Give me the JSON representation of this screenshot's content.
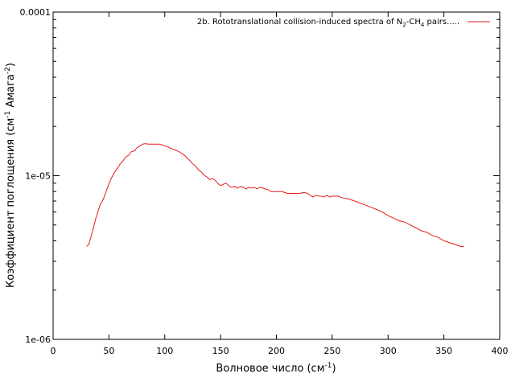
{
  "chart_data": {
    "type": "line",
    "xlabel_main": "Волновое число (см",
    "xlabel_sup": "-1",
    "xlabel_end": ")",
    "ylabel_main": "Коэффициент поглощения (см",
    "ylabel_sup1": "-1",
    "ylabel_mid": " Амага",
    "ylabel_sup2": "-2",
    "ylabel_end": ")",
    "legend": {
      "position": "top-right",
      "p1": "2b. Rototranslational collision-induced spectra of N",
      "sub1": "2",
      "p2": "-CH",
      "sub2": "4",
      "p3": " pairs.....",
      "color": "#e41a1c"
    },
    "xlim": [
      0,
      400
    ],
    "ylim": [
      1e-06,
      0.0001
    ],
    "yscale": "log",
    "xticks": [
      0,
      50,
      100,
      150,
      200,
      250,
      300,
      350,
      400
    ],
    "xtick_labels": [
      "0",
      "50",
      "100",
      "150",
      "200",
      "250",
      "300",
      "350",
      "400"
    ],
    "yticks": [
      1e-06,
      1e-05,
      0.0001
    ],
    "ytick_labels": [
      "1e-06",
      "1e-05",
      "0.0001"
    ],
    "grid": false,
    "series": [
      {
        "color": "#e41a1c",
        "x": [
          30,
          32,
          35,
          38,
          40,
          42,
          45,
          48,
          50,
          52,
          55,
          58,
          60,
          63,
          65,
          68,
          70,
          73,
          75,
          78,
          80,
          83,
          85,
          88,
          90,
          93,
          95,
          98,
          100,
          103,
          105,
          108,
          110,
          113,
          115,
          118,
          120,
          123,
          125,
          128,
          130,
          133,
          135,
          138,
          140,
          143,
          145,
          148,
          150,
          153,
          155,
          158,
          160,
          163,
          165,
          168,
          170,
          173,
          175,
          178,
          180,
          183,
          185,
          188,
          190,
          193,
          195,
          198,
          200,
          205,
          210,
          215,
          220,
          225,
          228,
          230,
          233,
          235,
          238,
          240,
          243,
          245,
          248,
          250,
          255,
          260,
          265,
          270,
          275,
          280,
          285,
          290,
          295,
          300,
          305,
          310,
          315,
          320,
          325,
          330,
          335,
          340,
          345,
          350,
          355,
          360,
          365,
          368
        ],
        "y": [
          3.7e-06,
          3.8e-06,
          4.5e-06,
          5.4e-06,
          6e-06,
          6.6e-06,
          7.2e-06,
          8.2e-06,
          8.9e-06,
          9.6e-06,
          1.05e-05,
          1.12e-05,
          1.18e-05,
          1.24e-05,
          1.3e-05,
          1.34e-05,
          1.4e-05,
          1.42e-05,
          1.48e-05,
          1.52e-05,
          1.56e-05,
          1.57e-05,
          1.56e-05,
          1.56e-05,
          1.56e-05,
          1.56e-05,
          1.56e-05,
          1.54e-05,
          1.52e-05,
          1.5e-05,
          1.47e-05,
          1.45e-05,
          1.43e-05,
          1.4e-05,
          1.37e-05,
          1.33e-05,
          1.28e-05,
          1.23e-05,
          1.18e-05,
          1.14e-05,
          1.09e-05,
          1.05e-05,
          1.01e-05,
          9.8e-06,
          9.5e-06,
          9.6e-06,
          9.4e-06,
          8.9e-06,
          8.7e-06,
          8.9e-06,
          9e-06,
          8.6e-06,
          8.5e-06,
          8.6e-06,
          8.4e-06,
          8.6e-06,
          8.5e-06,
          8.3e-06,
          8.5e-06,
          8.4e-06,
          8.5e-06,
          8.3e-06,
          8.5e-06,
          8.4e-06,
          8.3e-06,
          8.2e-06,
          8e-06,
          8e-06,
          8e-06,
          8e-06,
          7.8e-06,
          7.8e-06,
          7.8e-06,
          7.9e-06,
          7.8e-06,
          7.6e-06,
          7.4e-06,
          7.6e-06,
          7.5e-06,
          7.5e-06,
          7.4e-06,
          7.6e-06,
          7.4e-06,
          7.5e-06,
          7.5e-06,
          7.3e-06,
          7.2e-06,
          7e-06,
          6.8e-06,
          6.6e-06,
          6.4e-06,
          6.2e-06,
          6e-06,
          5.7e-06,
          5.5e-06,
          5.3e-06,
          5.2e-06,
          5e-06,
          4.8e-06,
          4.6e-06,
          4.5e-06,
          4.3e-06,
          4.2e-06,
          4e-06,
          3.9e-06,
          3.8e-06,
          3.7e-06,
          3.7e-06
        ]
      }
    ]
  }
}
